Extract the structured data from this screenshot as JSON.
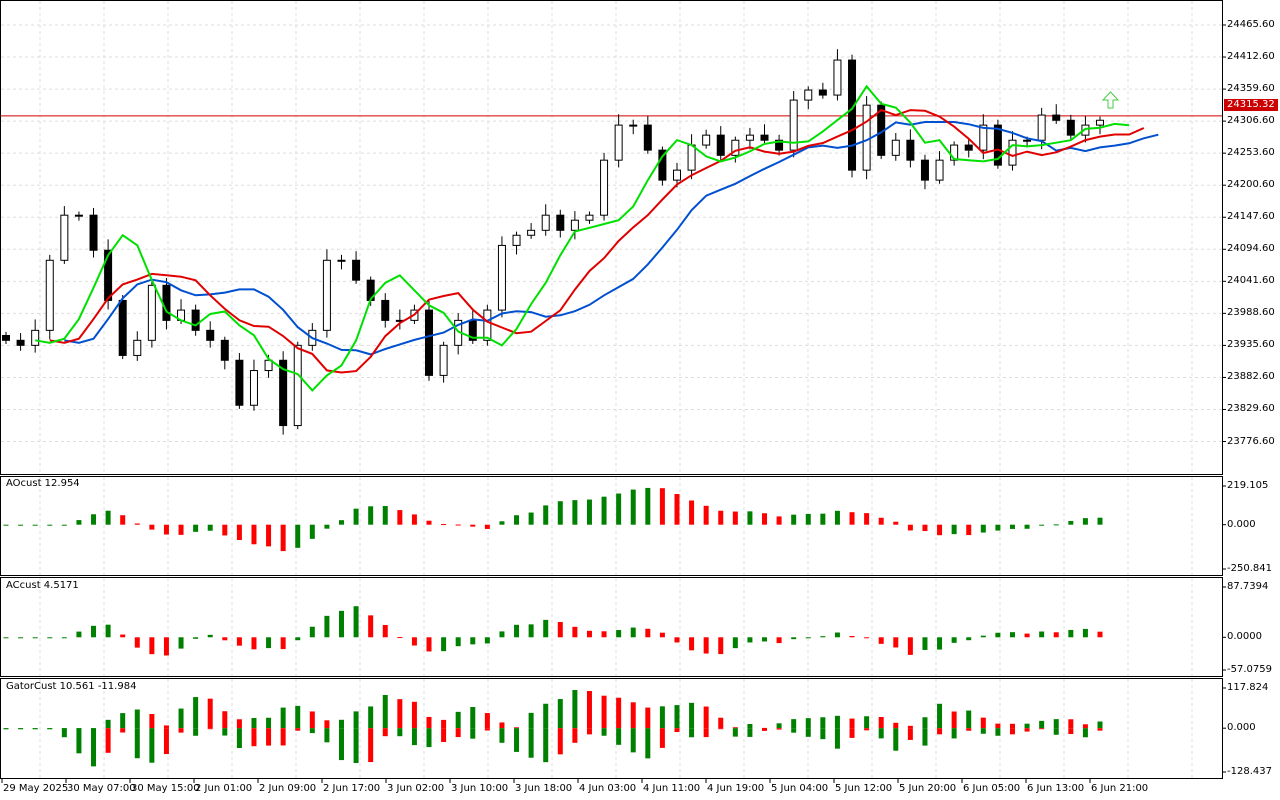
{
  "chart_data": {
    "type": "candlestick",
    "closes": [
      23944,
      23935.7,
      23960.5,
      24076.4,
      24151,
      24151,
      24093,
      24010,
      23919,
      23944,
      24035,
      23977,
      23994,
      23960.5,
      23944,
      23911,
      23836.6,
      23894,
      23911,
      23803,
      23935.7,
      23960.5,
      24076.4,
      24076.4,
      24043.5,
      24010,
      23977,
      23977,
      23994,
      23886,
      23935.7,
      23977,
      23944,
      23994,
      24101,
      24117.8,
      24126,
      24151,
      24126,
      24142.7,
      24151,
      24242,
      24300,
      24300,
      24258.6,
      24209,
      24225.5,
      24267,
      24283.4,
      24250,
      24275,
      24283.4,
      24275,
      24258.6,
      24341.4,
      24358,
      24349.7,
      24407.6,
      24225.5,
      24333,
      24250,
      24275,
      24242,
      24209,
      24242,
      24267,
      24258.6,
      24300,
      24233.8,
      24275,
      24275,
      24316.6,
      24308,
      24283.4,
      24300,
      24308
    ],
    "price_axis": [
      "24465.60",
      "24412.60",
      "24359.60",
      "24306.60",
      "24253.60",
      "24200.60",
      "24147.60",
      "24094.60",
      "24041.60",
      "23988.60",
      "23935.60",
      "23882.60",
      "23829.60",
      "23776.60"
    ],
    "ylim": [
      23750,
      24490
    ],
    "current_price": "24315.32",
    "current_price_value": 24315.32,
    "time_labels": [
      "29 May 2025",
      "30 May 07:00",
      "30 May 15:00",
      "2 Jun 01:00",
      "2 Jun 09:00",
      "2 Jun 17:00",
      "3 Jun 02:00",
      "3 Jun 10:00",
      "3 Jun 18:00",
      "4 Jun 03:00",
      "4 Jun 11:00",
      "4 Jun 19:00",
      "5 Jun 04:00",
      "5 Jun 12:00",
      "5 Jun 20:00",
      "6 Jun 05:00",
      "6 Jun 13:00",
      "6 Jun 21:00"
    ],
    "colors": {
      "up": "#ffffff",
      "down": "#000000",
      "ma_fast": "#00e000",
      "ma_mid": "#e00000",
      "ma_slow": "#0050d0",
      "osc_up": "#008000",
      "osc_down": "#ff0000",
      "price_line": "#d00000"
    },
    "indicators": [
      {
        "name": "AOcust",
        "label": "AOcust 12.954",
        "axis": [
          "219.105",
          "0.000",
          "-250.841"
        ],
        "range": [
          -250.841,
          219.105
        ]
      },
      {
        "name": "ACcust",
        "label": "ACcust 4.5171",
        "axis": [
          "87.7394",
          "0.0000",
          "-57.0759"
        ],
        "range": [
          -57.0759,
          87.7394
        ]
      },
      {
        "name": "GatorCust",
        "label": "GatorCust 10.561 -11.984",
        "axis": [
          "117.824",
          "0.000",
          "-128.437"
        ],
        "range": [
          -128.437,
          117.824
        ]
      }
    ]
  }
}
